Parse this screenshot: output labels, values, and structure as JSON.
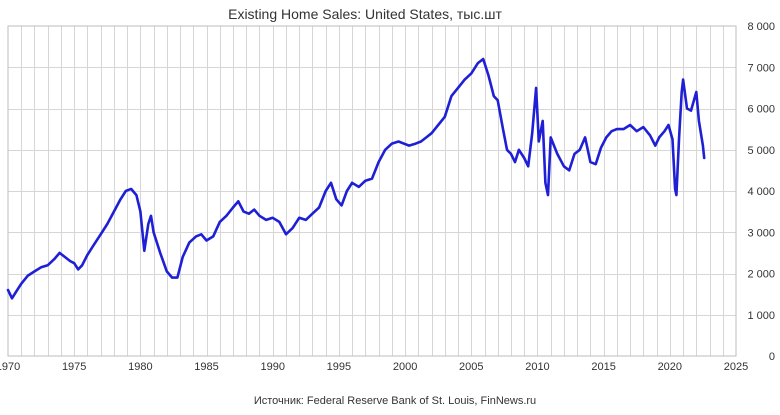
{
  "chart_data": {
    "type": "line",
    "title": "Existing Home Sales: United States, тыс.шт",
    "source": "Источник: Federal Reserve Bank of St. Louis, FinNews.ru",
    "xlim": [
      1970,
      2025
    ],
    "ylim": [
      0,
      8000
    ],
    "grid": true,
    "x_ticks": [
      "1970",
      "1975",
      "1980",
      "1985",
      "1990",
      "1995",
      "2000",
      "2005",
      "2010",
      "2015",
      "2020",
      "2025"
    ],
    "y_ticks": [
      "0",
      "1 000",
      "2 000",
      "3 000",
      "4 000",
      "5 000",
      "6 000",
      "7 000",
      "8 000"
    ],
    "colors": {
      "series": "#1f1fd6",
      "grid": "#d6d6d6",
      "text": "#333333"
    },
    "series": [
      {
        "points": [
          [
            1970.0,
            1600
          ],
          [
            1970.3,
            1400
          ],
          [
            1970.6,
            1550
          ],
          [
            1971.0,
            1750
          ],
          [
            1971.5,
            1950
          ],
          [
            1972.0,
            2050
          ],
          [
            1972.5,
            2150
          ],
          [
            1973.0,
            2200
          ],
          [
            1973.5,
            2350
          ],
          [
            1973.9,
            2500
          ],
          [
            1974.3,
            2400
          ],
          [
            1974.7,
            2300
          ],
          [
            1975.0,
            2250
          ],
          [
            1975.3,
            2100
          ],
          [
            1975.6,
            2200
          ],
          [
            1976.0,
            2450
          ],
          [
            1976.5,
            2700
          ],
          [
            1977.0,
            2950
          ],
          [
            1977.5,
            3200
          ],
          [
            1978.0,
            3500
          ],
          [
            1978.5,
            3800
          ],
          [
            1978.9,
            4000
          ],
          [
            1979.3,
            4050
          ],
          [
            1979.7,
            3900
          ],
          [
            1980.0,
            3500
          ],
          [
            1980.3,
            2550
          ],
          [
            1980.6,
            3200
          ],
          [
            1980.8,
            3400
          ],
          [
            1981.0,
            3000
          ],
          [
            1981.5,
            2500
          ],
          [
            1982.0,
            2050
          ],
          [
            1982.4,
            1900
          ],
          [
            1982.8,
            1900
          ],
          [
            1983.2,
            2400
          ],
          [
            1983.7,
            2750
          ],
          [
            1984.2,
            2900
          ],
          [
            1984.6,
            2950
          ],
          [
            1985.0,
            2800
          ],
          [
            1985.5,
            2900
          ],
          [
            1986.0,
            3250
          ],
          [
            1986.5,
            3400
          ],
          [
            1987.0,
            3600
          ],
          [
            1987.4,
            3750
          ],
          [
            1987.8,
            3500
          ],
          [
            1988.2,
            3450
          ],
          [
            1988.6,
            3550
          ],
          [
            1989.0,
            3400
          ],
          [
            1989.5,
            3300
          ],
          [
            1990.0,
            3350
          ],
          [
            1990.5,
            3250
          ],
          [
            1991.0,
            2950
          ],
          [
            1991.5,
            3100
          ],
          [
            1992.0,
            3350
          ],
          [
            1992.5,
            3300
          ],
          [
            1993.0,
            3450
          ],
          [
            1993.5,
            3600
          ],
          [
            1994.0,
            4000
          ],
          [
            1994.4,
            4200
          ],
          [
            1994.8,
            3800
          ],
          [
            1995.2,
            3650
          ],
          [
            1995.6,
            4000
          ],
          [
            1996.0,
            4200
          ],
          [
            1996.5,
            4100
          ],
          [
            1997.0,
            4250
          ],
          [
            1997.5,
            4300
          ],
          [
            1998.0,
            4700
          ],
          [
            1998.5,
            5000
          ],
          [
            1999.0,
            5150
          ],
          [
            1999.5,
            5200
          ],
          [
            1999.9,
            5150
          ],
          [
            2000.3,
            5100
          ],
          [
            2000.8,
            5150
          ],
          [
            2001.2,
            5200
          ],
          [
            2001.6,
            5300
          ],
          [
            2002.0,
            5400
          ],
          [
            2002.5,
            5600
          ],
          [
            2003.0,
            5800
          ],
          [
            2003.5,
            6300
          ],
          [
            2004.0,
            6500
          ],
          [
            2004.5,
            6700
          ],
          [
            2005.0,
            6850
          ],
          [
            2005.5,
            7100
          ],
          [
            2005.9,
            7200
          ],
          [
            2006.3,
            6800
          ],
          [
            2006.7,
            6300
          ],
          [
            2007.0,
            6200
          ],
          [
            2007.4,
            5500
          ],
          [
            2007.7,
            5000
          ],
          [
            2008.0,
            4900
          ],
          [
            2008.3,
            4700
          ],
          [
            2008.6,
            5000
          ],
          [
            2009.0,
            4800
          ],
          [
            2009.3,
            4600
          ],
          [
            2009.6,
            5400
          ],
          [
            2009.9,
            6500
          ],
          [
            2010.1,
            5200
          ],
          [
            2010.4,
            5700
          ],
          [
            2010.6,
            4200
          ],
          [
            2010.8,
            3900
          ],
          [
            2011.0,
            5300
          ],
          [
            2011.5,
            4900
          ],
          [
            2012.0,
            4600
          ],
          [
            2012.4,
            4500
          ],
          [
            2012.8,
            4900
          ],
          [
            2013.2,
            5000
          ],
          [
            2013.6,
            5300
          ],
          [
            2014.0,
            4700
          ],
          [
            2014.4,
            4650
          ],
          [
            2014.8,
            5050
          ],
          [
            2015.2,
            5300
          ],
          [
            2015.6,
            5450
          ],
          [
            2016.0,
            5500
          ],
          [
            2016.5,
            5500
          ],
          [
            2017.0,
            5600
          ],
          [
            2017.5,
            5450
          ],
          [
            2018.0,
            5550
          ],
          [
            2018.5,
            5350
          ],
          [
            2018.9,
            5100
          ],
          [
            2019.2,
            5300
          ],
          [
            2019.6,
            5450
          ],
          [
            2019.9,
            5600
          ],
          [
            2020.2,
            5250
          ],
          [
            2020.4,
            4050
          ],
          [
            2020.5,
            3900
          ],
          [
            2020.7,
            5300
          ],
          [
            2020.9,
            6400
          ],
          [
            2021.0,
            6700
          ],
          [
            2021.3,
            6000
          ],
          [
            2021.6,
            5950
          ],
          [
            2022.0,
            6400
          ],
          [
            2022.2,
            5700
          ],
          [
            2022.5,
            5100
          ],
          [
            2022.6,
            4800
          ]
        ]
      }
    ]
  }
}
